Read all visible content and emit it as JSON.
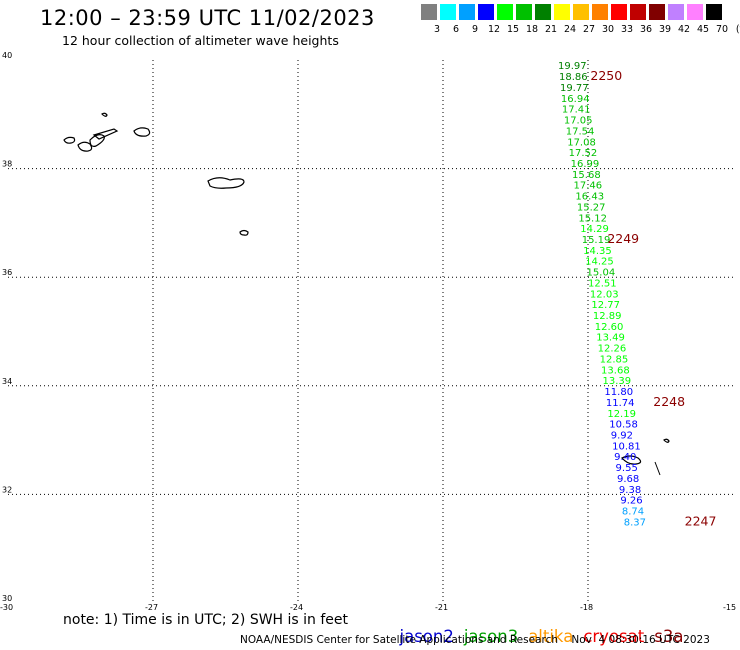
{
  "header": {
    "title": "12:00 – 23:59 UTC 11/02/2023",
    "subtitle": "12 hour collection of altimeter wave heights"
  },
  "scale": {
    "colors": [
      "#808080",
      "#00ffff",
      "#00a0ff",
      "#0000ff",
      "#00ff00",
      "#00c000",
      "#008000",
      "#ffff00",
      "#ffc000",
      "#ff8000",
      "#ff0000",
      "#c00000",
      "#800000",
      "#c080ff",
      "#ff80ff",
      "#000000"
    ],
    "labels": [
      "3",
      "6",
      "9",
      "12",
      "15",
      "18",
      "21",
      "24",
      "27",
      "30",
      "33",
      "36",
      "39",
      "42",
      "45",
      "70"
    ],
    "unit": "(ft)"
  },
  "axes": {
    "lat_labels": [
      "40",
      "38",
      "36",
      "34",
      "32",
      "30"
    ],
    "lat_values": [
      40,
      38,
      36,
      34,
      32,
      30
    ],
    "lon_labels": [
      "-30",
      "-27",
      "-24",
      "-21",
      "-18",
      "-15"
    ],
    "lon_values": [
      -30,
      -27,
      -24,
      -21,
      -18,
      -15
    ]
  },
  "satellites": {
    "jason2": {
      "label": "jason2",
      "color": "#0000cc"
    },
    "jason3": {
      "label": "jason3",
      "color": "#00a000"
    },
    "altika": {
      "label": "altika",
      "color": "#ff9900"
    },
    "cryosat": {
      "label": "cryosat",
      "color": "#ee0000"
    },
    "s3a": {
      "label": "s3a",
      "color": "#8b0000"
    }
  },
  "track": [
    {
      "lon": -18.62,
      "lat": 39.83,
      "swh": 19.97,
      "sat": "jason3"
    },
    {
      "lon": -18.6,
      "lat": 39.63,
      "swh": 18.86,
      "sat": "jason3"
    },
    {
      "lon": -18.58,
      "lat": 39.43,
      "swh": 19.77,
      "sat": "jason3"
    },
    {
      "lon": -18.56,
      "lat": 39.23,
      "swh": 16.94,
      "sat": "jason3"
    },
    {
      "lon": -18.54,
      "lat": 39.03,
      "swh": 17.41,
      "sat": "jason3"
    },
    {
      "lon": -18.5,
      "lat": 38.83,
      "swh": 17.05,
      "sat": "jason3"
    },
    {
      "lon": -18.46,
      "lat": 38.63,
      "swh": 17.54,
      "sat": "jason3"
    },
    {
      "lon": -18.43,
      "lat": 38.43,
      "swh": 17.08,
      "sat": "jason3"
    },
    {
      "lon": -18.4,
      "lat": 38.23,
      "swh": 17.52,
      "sat": "jason3"
    },
    {
      "lon": -18.36,
      "lat": 38.03,
      "swh": 16.99,
      "sat": "jason3"
    },
    {
      "lon": -18.33,
      "lat": 37.83,
      "swh": 15.68,
      "sat": "jason3"
    },
    {
      "lon": -18.3,
      "lat": 37.63,
      "swh": 17.46,
      "sat": "jason3"
    },
    {
      "lon": -18.26,
      "lat": 37.43,
      "swh": 16.43,
      "sat": "jason3"
    },
    {
      "lon": -18.23,
      "lat": 37.23,
      "swh": 15.27,
      "sat": "jason3"
    },
    {
      "lon": -18.2,
      "lat": 37.03,
      "swh": 15.12,
      "sat": "jason3"
    },
    {
      "lon": -18.16,
      "lat": 36.83,
      "swh": 14.29,
      "sat": "jason3"
    },
    {
      "lon": -18.13,
      "lat": 36.63,
      "swh": 15.19,
      "sat": "jason3"
    },
    {
      "lon": -18.1,
      "lat": 36.43,
      "swh": 14.35,
      "sat": "jason3"
    },
    {
      "lon": -18.06,
      "lat": 36.23,
      "swh": 14.25,
      "sat": "jason3"
    },
    {
      "lon": -18.03,
      "lat": 36.03,
      "swh": 15.04,
      "sat": "jason3"
    },
    {
      "lon": -18.0,
      "lat": 35.83,
      "swh": 12.51,
      "sat": "jason3"
    },
    {
      "lon": -17.96,
      "lat": 35.63,
      "swh": 12.03,
      "sat": "jason3"
    },
    {
      "lon": -17.93,
      "lat": 35.43,
      "swh": 12.77,
      "sat": "jason3"
    },
    {
      "lon": -17.9,
      "lat": 35.23,
      "swh": 12.89,
      "sat": "jason3"
    },
    {
      "lon": -17.86,
      "lat": 35.03,
      "swh": 12.6,
      "sat": "jason3"
    },
    {
      "lon": -17.83,
      "lat": 34.83,
      "swh": 13.49,
      "sat": "jason3"
    },
    {
      "lon": -17.8,
      "lat": 34.63,
      "swh": 12.26,
      "sat": "jason3"
    },
    {
      "lon": -17.76,
      "lat": 34.43,
      "swh": 12.85,
      "sat": "jason3"
    },
    {
      "lon": -17.73,
      "lat": 34.23,
      "swh": 13.68,
      "sat": "jason3"
    },
    {
      "lon": -17.7,
      "lat": 34.03,
      "swh": 13.39,
      "sat": "jason3"
    },
    {
      "lon": -17.66,
      "lat": 33.83,
      "swh": 11.8,
      "sat": "jason3"
    },
    {
      "lon": -17.63,
      "lat": 33.63,
      "swh": 11.74,
      "sat": "jason3"
    },
    {
      "lon": -17.6,
      "lat": 33.43,
      "swh": 12.19,
      "sat": "jason3"
    },
    {
      "lon": -17.56,
      "lat": 33.23,
      "swh": 10.58,
      "sat": "jason3"
    },
    {
      "lon": -17.53,
      "lat": 33.03,
      "swh": 9.92,
      "sat": "jason3"
    },
    {
      "lon": -17.5,
      "lat": 32.83,
      "swh": 10.81,
      "sat": "jason3"
    },
    {
      "lon": -17.46,
      "lat": 32.63,
      "swh": 9.4,
      "sat": "jason3"
    },
    {
      "lon": -17.43,
      "lat": 32.43,
      "swh": 9.55,
      "sat": "jason3"
    },
    {
      "lon": -17.4,
      "lat": 32.23,
      "swh": 9.68,
      "sat": "jason3"
    },
    {
      "lon": -17.36,
      "lat": 32.03,
      "swh": 9.38,
      "sat": "jason3"
    },
    {
      "lon": -17.33,
      "lat": 31.83,
      "swh": 9.26,
      "sat": "jason3"
    },
    {
      "lon": -17.3,
      "lat": 31.63,
      "swh": 8.74,
      "sat": "jason3"
    },
    {
      "lon": -17.26,
      "lat": 31.43,
      "swh": 8.37,
      "sat": "jason3"
    }
  ],
  "time_labels": [
    {
      "text": "2250",
      "lon": -17.95,
      "lat": 39.63
    },
    {
      "text": "2249",
      "lon": -17.6,
      "lat": 36.63
    },
    {
      "text": "2248",
      "lon": -16.65,
      "lat": 33.63
    },
    {
      "text": "2247",
      "lon": -16.0,
      "lat": 31.43
    }
  ],
  "footer": {
    "note": "note: 1) Time is in UTC; 2) SWH is in feet",
    "credit": "NOAA/NESDIS Center for Satellite Applications and Research    Nov  4 08:30:16 UTC 2023"
  }
}
